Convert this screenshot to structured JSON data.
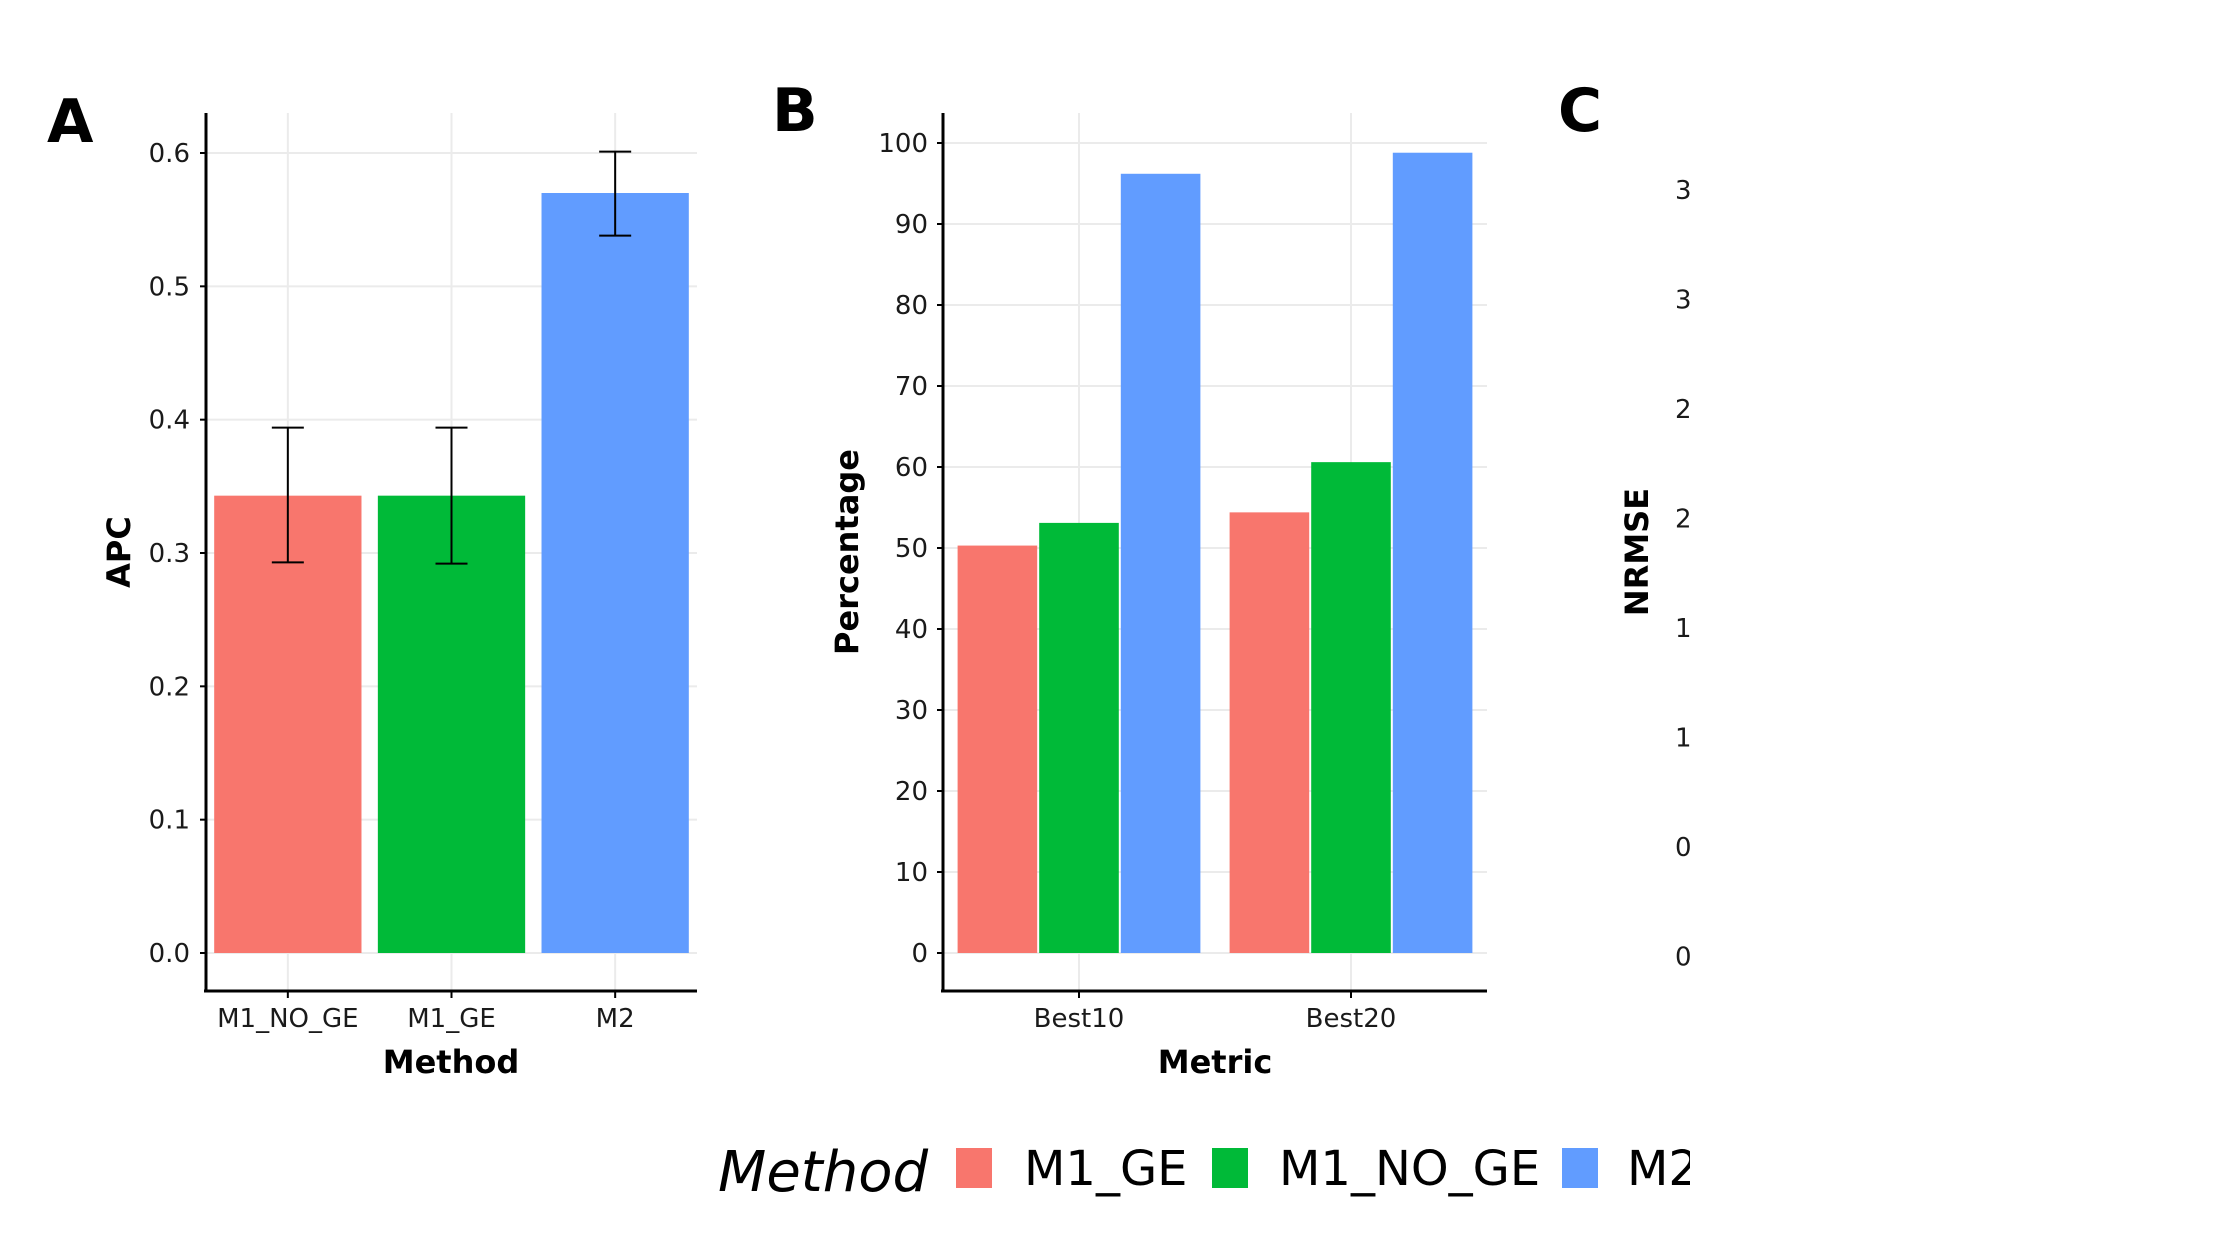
{
  "colors": {
    "M1_GE": "#F8766D",
    "M1_NO_GE": "#00BA38",
    "M2": "#619CFF"
  },
  "legend": {
    "title": "Method",
    "items": [
      "M1_GE",
      "M1_NO_GE",
      "M2"
    ]
  },
  "chart_data": [
    {
      "panel": "A",
      "type": "bar",
      "xlabel": "Method",
      "ylabel": "APC",
      "categories": [
        "M1_NO_GE",
        "M1_GE",
        "M2"
      ],
      "values": [
        0.343,
        0.343,
        0.57
      ],
      "errors": [
        [
          0.293,
          0.394
        ],
        [
          0.292,
          0.394
        ],
        [
          0.538,
          0.601
        ]
      ],
      "ylim": [
        0,
        0.63
      ],
      "yticks": [
        0.0,
        0.1,
        0.2,
        0.3,
        0.4,
        0.5,
        0.6
      ],
      "ytick_labels": [
        "0.0",
        "0.1",
        "0.2",
        "0.3",
        "0.4",
        "0.5",
        "0.6"
      ],
      "grid": true
    },
    {
      "panel": "B",
      "type": "bar",
      "xlabel": "Metric",
      "ylabel": "Percentage",
      "categories": [
        "Best10",
        "Best20"
      ],
      "series": [
        {
          "name": "M1_GE",
          "values": [
            50.3,
            54.4
          ]
        },
        {
          "name": "M1_NO_GE",
          "values": [
            53.1,
            60.6
          ]
        },
        {
          "name": "M2",
          "values": [
            96.2,
            98.8
          ]
        }
      ],
      "ylim": [
        0,
        102
      ],
      "yticks": [
        0,
        10,
        20,
        30,
        40,
        50,
        60,
        70,
        80,
        90,
        100
      ],
      "ytick_labels": [
        "0",
        "10",
        "20",
        "30",
        "40",
        "50",
        "60",
        "70",
        "80",
        "90",
        "100"
      ],
      "grid": true
    },
    {
      "panel": "C",
      "type": "bar",
      "xlabel": "",
      "ylabel": "NRMSE",
      "categories": [],
      "values": [],
      "ytick_labels": [
        "3",
        "3",
        "2",
        "2",
        "1",
        "1",
        "0",
        "0"
      ],
      "grid": false
    }
  ]
}
